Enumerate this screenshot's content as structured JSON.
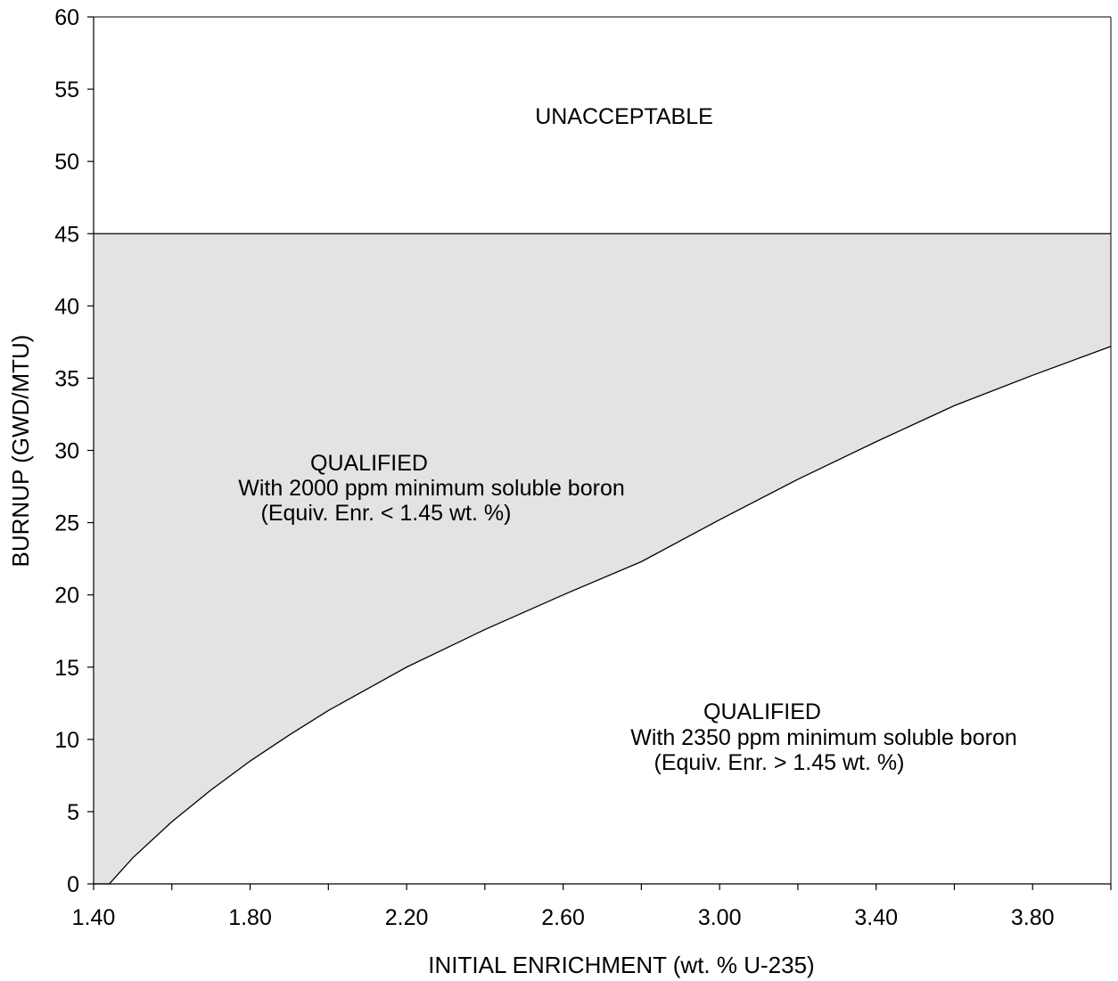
{
  "chart_data": {
    "type": "area",
    "title": "",
    "xlabel": "INITIAL ENRICHMENT (wt. % U-235)",
    "ylabel": "BURNUP (GWD/MTU)",
    "xlim": [
      1.4,
      4.0
    ],
    "ylim": [
      0,
      60
    ],
    "x_ticks": [
      "1.40",
      "1.80",
      "2.20",
      "2.60",
      "3.00",
      "3.40",
      "3.80"
    ],
    "y_ticks": [
      "0",
      "5",
      "10",
      "15",
      "20",
      "25",
      "30",
      "35",
      "40",
      "45",
      "50",
      "55",
      "60"
    ],
    "limit_burnup": 45,
    "grid": false,
    "legend": "none",
    "series": [
      {
        "points": [
          [
            1.4,
            0
          ],
          [
            1.44,
            0
          ],
          [
            1.45,
            0.3
          ],
          [
            1.5,
            1.8
          ],
          [
            1.6,
            4.3
          ],
          [
            1.7,
            6.5
          ],
          [
            1.8,
            8.5
          ],
          [
            1.9,
            10.3
          ],
          [
            2.0,
            12.0
          ],
          [
            2.2,
            15.0
          ],
          [
            2.4,
            17.6
          ],
          [
            2.6,
            20.0
          ],
          [
            2.8,
            22.3
          ],
          [
            3.0,
            25.2
          ],
          [
            3.2,
            28.0
          ],
          [
            3.4,
            30.6
          ],
          [
            3.6,
            33.1
          ],
          [
            3.8,
            35.2
          ],
          [
            4.0,
            37.2
          ]
        ]
      }
    ],
    "regions": [
      {
        "lines": [
          "UNACCEPTABLE"
        ]
      },
      {
        "lines": [
          "QUALIFIED",
          "With 2000 ppm minimum soluble boron",
          "(Equiv. Enr. < 1.45 wt. %)"
        ]
      },
      {
        "lines": [
          "QUALIFIED",
          "With 2350 ppm minimum soluble boron",
          "(Equiv. Enr. > 1.45 wt. %)"
        ]
      }
    ],
    "colors": {
      "shaded_region": "#e3e3e3",
      "line": "#000000",
      "background": "#ffffff"
    }
  }
}
